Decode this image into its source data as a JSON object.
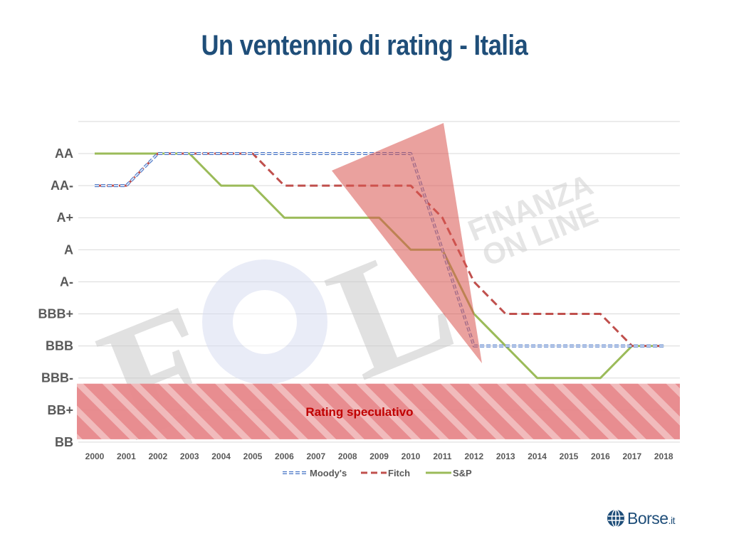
{
  "title": "Un ventennio di rating - Italia",
  "colors": {
    "title": "#1f4e79",
    "moodys": "#4472c4",
    "fitch": "#c0504d",
    "sp": "#9bbb59",
    "speculative_band": "#e06666",
    "speculative_text": "#c00000",
    "triangle": "#d9534f"
  },
  "chart_data": {
    "type": "line",
    "title": "Un ventennio di rating - Italia",
    "xlabel": "",
    "ylabel": "",
    "categories": [
      "2000",
      "2001",
      "2002",
      "2003",
      "2004",
      "2005",
      "2006",
      "2007",
      "2008",
      "2009",
      "2010",
      "2011",
      "2012",
      "2013",
      "2014",
      "2015",
      "2016",
      "2017",
      "2018"
    ],
    "y_scale": [
      "BB",
      "BB+",
      "BBB-",
      "BBB",
      "BBB+",
      "A-",
      "A",
      "A+",
      "AA-",
      "AA"
    ],
    "ylim": [
      "BB",
      "AA"
    ],
    "grid": true,
    "legend_position": "bottom",
    "series": [
      {
        "name": "Moody's",
        "style": "dashed-hollow",
        "values": [
          "AA-",
          "AA-",
          "AA",
          "AA",
          "AA",
          "AA",
          "AA",
          "AA",
          "AA",
          "AA",
          "AA",
          "A",
          "BBB",
          "BBB",
          "BBB",
          "BBB",
          "BBB",
          "BBB",
          "BBB"
        ]
      },
      {
        "name": "Fitch",
        "style": "dashed",
        "values": [
          "AA-",
          "AA-",
          "AA",
          "AA",
          "AA",
          "AA",
          "AA-",
          "AA-",
          "AA-",
          "AA-",
          "AA-",
          "A+",
          "A-",
          "BBB+",
          "BBB+",
          "BBB+",
          "BBB+",
          "BBB",
          "BBB"
        ]
      },
      {
        "name": "S&P",
        "style": "solid",
        "values": [
          "AA",
          "AA",
          "AA",
          "AA",
          "AA-",
          "AA-",
          "A+",
          "A+",
          "A+",
          "A+",
          "A",
          "A",
          "BBB+",
          "BBB",
          "BBB-",
          "BBB-",
          "BBB-",
          "BBB",
          "BBB"
        ]
      }
    ],
    "annotations": [
      {
        "text": "Rating speculativo",
        "region": [
          "BB",
          "BBB-"
        ]
      }
    ]
  },
  "watermark": {
    "letters": [
      "F",
      "O",
      "L"
    ],
    "line1": "FINANZA",
    "line2": "ON LINE"
  },
  "logo": {
    "name": "Borse",
    "suffix": ".it"
  }
}
